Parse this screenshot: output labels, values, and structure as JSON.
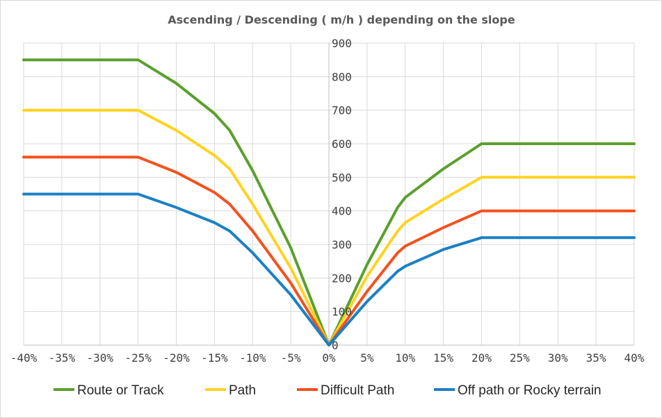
{
  "chart_data": {
    "type": "line",
    "title": "Ascending / Descending ( m/h ) depending on the slope",
    "xlabel": "",
    "ylabel": "",
    "xlim": [
      -40,
      40
    ],
    "ylim": [
      0,
      900
    ],
    "x_ticks": [
      -40,
      -35,
      -30,
      -25,
      -20,
      -15,
      -10,
      -5,
      0,
      5,
      10,
      15,
      20,
      25,
      30,
      35,
      40
    ],
    "x_tick_labels": [
      "-40%",
      "-35%",
      "-30%",
      "-25%",
      "-20%",
      "-15%",
      "-10%",
      "-5%",
      "0%",
      "5%",
      "10%",
      "15%",
      "20%",
      "25%",
      "30%",
      "35%",
      "40%"
    ],
    "y_ticks": [
      0,
      100,
      200,
      300,
      400,
      500,
      600,
      700,
      800,
      900
    ],
    "y_tick_labels": [
      "0",
      "100",
      "200",
      "300",
      "400",
      "500",
      "600",
      "700",
      "800",
      "900"
    ],
    "grid": true,
    "legend_position": "bottom",
    "series": [
      {
        "name": "Route or Track",
        "color": "#5aa02c",
        "points": [
          [
            -40,
            850
          ],
          [
            -25,
            850
          ],
          [
            -20,
            780
          ],
          [
            -15,
            690
          ],
          [
            -13,
            640
          ],
          [
            -10,
            520
          ],
          [
            -5,
            290
          ],
          [
            0,
            0
          ],
          [
            5,
            240
          ],
          [
            9,
            410
          ],
          [
            10,
            440
          ],
          [
            15,
            525
          ],
          [
            20,
            600
          ],
          [
            40,
            600
          ]
        ]
      },
      {
        "name": "Path",
        "color": "#ffd320",
        "points": [
          [
            -40,
            700
          ],
          [
            -25,
            700
          ],
          [
            -20,
            640
          ],
          [
            -15,
            565
          ],
          [
            -13,
            525
          ],
          [
            -10,
            420
          ],
          [
            -5,
            230
          ],
          [
            0,
            0
          ],
          [
            5,
            205
          ],
          [
            9,
            340
          ],
          [
            10,
            365
          ],
          [
            15,
            435
          ],
          [
            20,
            500
          ],
          [
            40,
            500
          ]
        ]
      },
      {
        "name": "Difficult Path",
        "color": "#f4511e",
        "points": [
          [
            -40,
            560
          ],
          [
            -25,
            560
          ],
          [
            -20,
            515
          ],
          [
            -15,
            455
          ],
          [
            -13,
            420
          ],
          [
            -10,
            340
          ],
          [
            -5,
            185
          ],
          [
            0,
            0
          ],
          [
            5,
            160
          ],
          [
            9,
            275
          ],
          [
            10,
            295
          ],
          [
            15,
            350
          ],
          [
            20,
            400
          ],
          [
            40,
            400
          ]
        ]
      },
      {
        "name": "Off path or Rocky terrain",
        "color": "#1a80c4",
        "points": [
          [
            -40,
            450
          ],
          [
            -25,
            450
          ],
          [
            -20,
            410
          ],
          [
            -15,
            365
          ],
          [
            -13,
            340
          ],
          [
            -10,
            275
          ],
          [
            -5,
            150
          ],
          [
            0,
            0
          ],
          [
            5,
            130
          ],
          [
            9,
            220
          ],
          [
            10,
            235
          ],
          [
            15,
            285
          ],
          [
            20,
            320
          ],
          [
            40,
            320
          ]
        ]
      }
    ]
  }
}
